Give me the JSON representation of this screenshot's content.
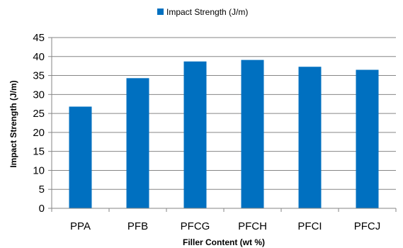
{
  "chart_data": {
    "type": "bar",
    "categories": [
      "PPA",
      "PFB",
      "PFCG",
      "PFCH",
      "PFCI",
      "PFCJ"
    ],
    "series": [
      {
        "name": "Impact Strength (J/m)",
        "values": [
          26.8,
          34.3,
          38.7,
          39.1,
          37.3,
          36.5
        ]
      }
    ],
    "xlabel": "Filler Content (wt %)",
    "ylabel": "Impact Strength (J/m)",
    "ylim": [
      0,
      45
    ],
    "yticks": [
      0,
      5,
      10,
      15,
      20,
      25,
      30,
      35,
      40,
      45
    ],
    "grid": true,
    "legend": "top-center",
    "colors": {
      "bar": "#0070C0",
      "grid": "#868686",
      "axis": "#868686"
    }
  }
}
